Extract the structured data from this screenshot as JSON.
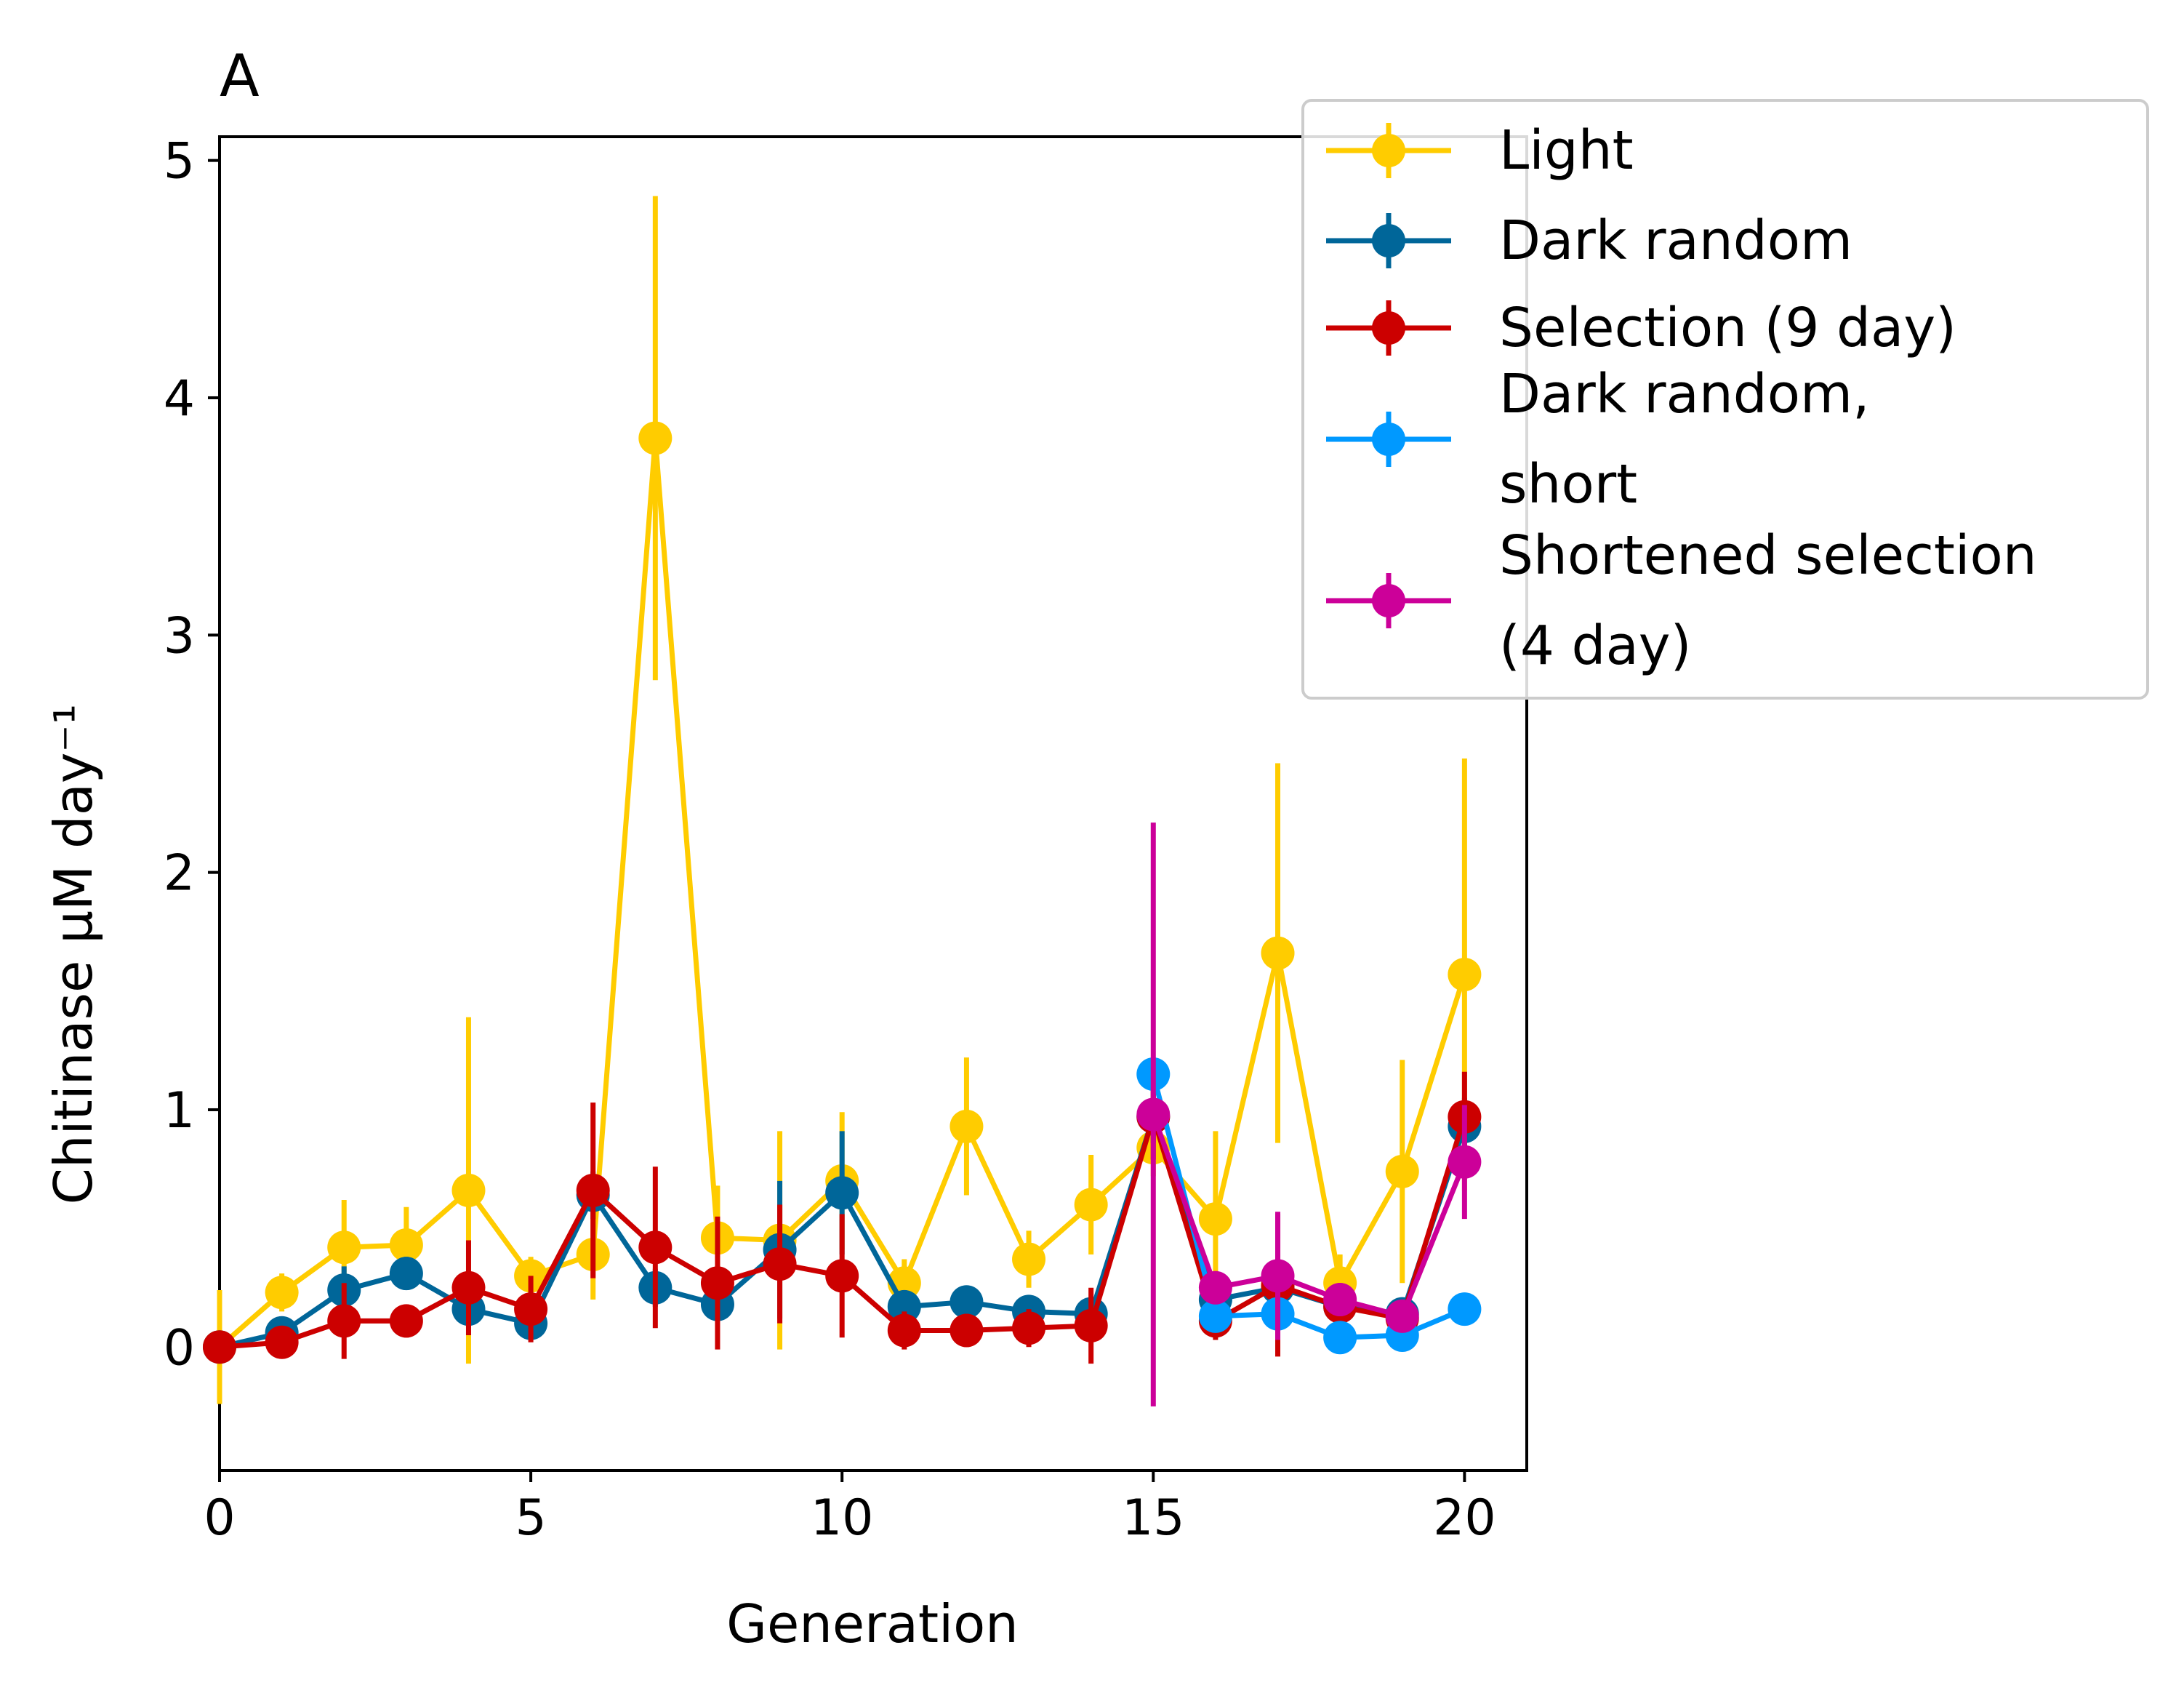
{
  "chart_data": {
    "type": "line",
    "title": "A",
    "xlabel": "Generation",
    "ylabel": "Chitinase μM day⁻¹",
    "xlim": [
      0,
      21
    ],
    "ylim": [
      -0.52,
      5.1
    ],
    "x_ticks": [
      0,
      5,
      10,
      15,
      20
    ],
    "y_ticks": [
      0,
      1,
      2,
      3,
      4,
      5
    ],
    "grid": false,
    "legend_position": "upper-right, extending outside axes",
    "series": [
      {
        "name": "Light",
        "color": "#ffcc00",
        "x": [
          0,
          1,
          2,
          3,
          4,
          5,
          6,
          7,
          8,
          9,
          10,
          11,
          12,
          13,
          14,
          15,
          16,
          17,
          18,
          19,
          20
        ],
        "y": [
          0.0,
          0.23,
          0.42,
          0.43,
          0.66,
          0.3,
          0.39,
          3.83,
          0.46,
          0.45,
          0.7,
          0.27,
          0.93,
          0.37,
          0.6,
          0.84,
          0.54,
          1.66,
          0.27,
          0.74,
          1.57
        ],
        "err": [
          0.24,
          0.08,
          0.2,
          0.16,
          0.73,
          0.08,
          0.19,
          1.02,
          0.22,
          0.46,
          0.29,
          0.1,
          0.29,
          0.12,
          0.21,
          0.12,
          0.37,
          0.8,
          0.12,
          0.47,
          0.91
        ]
      },
      {
        "name": "Dark random",
        "color": "#006699",
        "x": [
          0,
          1,
          2,
          3,
          4,
          5,
          6,
          7,
          8,
          9,
          10,
          11,
          12,
          13,
          14,
          15,
          16,
          17,
          18,
          19,
          20
        ],
        "y": [
          0.0,
          0.06,
          0.24,
          0.31,
          0.16,
          0.1,
          0.64,
          0.25,
          0.18,
          0.41,
          0.65,
          0.17,
          0.19,
          0.15,
          0.14,
          0.97,
          0.2,
          0.25,
          0.17,
          0.14,
          0.93
        ],
        "err": [
          0.02,
          0.05,
          0.1,
          0.07,
          0.08,
          0.05,
          0.1,
          0.08,
          0.07,
          0.29,
          0.26,
          0.07,
          0.07,
          0.05,
          0.05,
          0.11,
          0.08,
          0.08,
          0.06,
          0.05,
          0.12
        ]
      },
      {
        "name": "Selection (9 day)",
        "color": "#cc0000",
        "x": [
          0,
          1,
          2,
          3,
          4,
          5,
          6,
          7,
          8,
          9,
          10,
          11,
          12,
          13,
          14,
          15,
          16,
          17,
          18,
          19,
          20
        ],
        "y": [
          0.0,
          0.02,
          0.11,
          0.11,
          0.25,
          0.16,
          0.66,
          0.42,
          0.27,
          0.35,
          0.3,
          0.07,
          0.07,
          0.08,
          0.09,
          0.97,
          0.11,
          0.26,
          0.17,
          0.12,
          0.97
        ],
        "err": [
          0.03,
          0.05,
          0.16,
          0.07,
          0.2,
          0.14,
          0.37,
          0.34,
          0.28,
          0.25,
          0.26,
          0.08,
          0.07,
          0.08,
          0.16,
          0.18,
          0.08,
          0.3,
          0.06,
          0.05,
          0.19
        ]
      },
      {
        "name": "Dark random,\n short",
        "color": "#0099ff",
        "x": [
          15,
          16,
          17,
          18,
          19,
          20
        ],
        "y": [
          1.15,
          0.13,
          0.14,
          0.04,
          0.05,
          0.16
        ],
        "err": [
          0.05,
          0.05,
          0.05,
          0.03,
          0.03,
          0.04
        ]
      },
      {
        "name": "Shortened selection\n (4 day)",
        "color": "#cc0099",
        "x": [
          15,
          16,
          17,
          18,
          19,
          20
        ],
        "y": [
          0.98,
          0.25,
          0.3,
          0.2,
          0.13,
          0.78
        ],
        "err": [
          1.23,
          0.07,
          0.27,
          0.07,
          0.06,
          0.24
        ]
      }
    ]
  }
}
